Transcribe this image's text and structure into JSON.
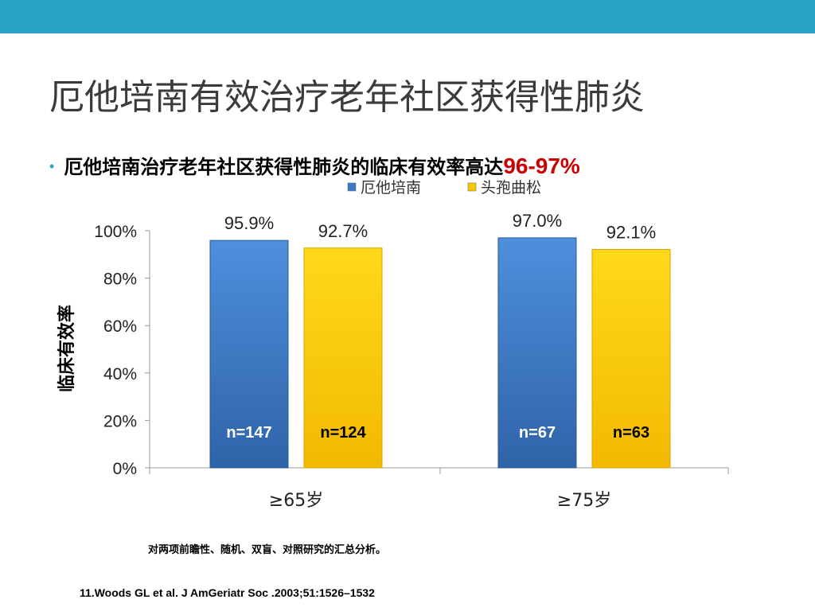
{
  "slide": {
    "title": "厄他培南有效治疗老年社区获得性肺炎",
    "bullet": "厄他培南治疗老年社区获得性肺炎的临床有效率高达",
    "bullet_highlight": "96-97%",
    "footnote": "对两项前瞻性、随机、双盲、对照研究的汇总分析。",
    "reference": "11.Woods GL et al. J AmGeriatr Soc .2003;51:1526–1532"
  },
  "colors": {
    "topbar": "#2aa3c4",
    "ertapenem": "#3b7ac9",
    "ceftriaxone": "#f5c800",
    "highlight": "#cc0000"
  },
  "chart_data": {
    "type": "bar",
    "categories": [
      "≥65岁",
      "≥75岁"
    ],
    "series": [
      {
        "name": "厄他培南",
        "values": [
          95.9,
          97.0
        ],
        "value_labels": [
          "95.9%",
          "97.0%"
        ],
        "n_labels": [
          "n=147",
          "n=67"
        ]
      },
      {
        "name": "头孢曲松",
        "values": [
          92.7,
          92.1
        ],
        "value_labels": [
          "92.7%",
          "92.1%"
        ],
        "n_labels": [
          "n=124",
          "n=63"
        ]
      }
    ],
    "ylabel": "临床有效率",
    "ylim": [
      0,
      100
    ],
    "yticks": [
      "0%",
      "20%",
      "40%",
      "60%",
      "80%",
      "100%"
    ],
    "grid": false,
    "legend_position": "top"
  }
}
